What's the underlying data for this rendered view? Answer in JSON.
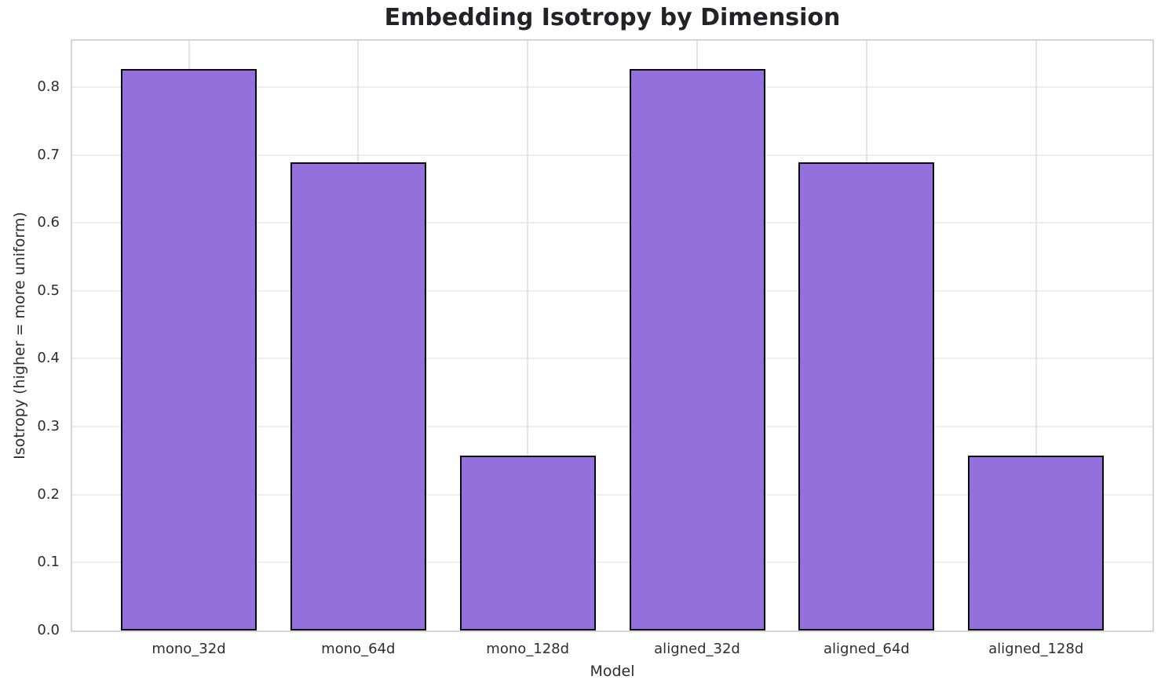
{
  "chart_data": {
    "type": "bar",
    "title": "Embedding Isotropy by Dimension",
    "xlabel": "Model",
    "ylabel": "Isotropy (higher = more uniform)",
    "categories": [
      "mono_32d",
      "mono_64d",
      "mono_128d",
      "aligned_32d",
      "aligned_64d",
      "aligned_128d"
    ],
    "values": [
      0.827,
      0.689,
      0.257,
      0.827,
      0.689,
      0.257
    ],
    "ylim": [
      0,
      0.868
    ],
    "ytick_labels": [
      "0.0",
      "0.1",
      "0.2",
      "0.3",
      "0.4",
      "0.5",
      "0.6",
      "0.7",
      "0.8"
    ],
    "grid": true,
    "legend_position": "none",
    "bar_color": "#9370DB",
    "bar_edge_color": "#0b0b0b",
    "grid_color": "#eaeaea",
    "spine_color": "#d5d5d5"
  }
}
